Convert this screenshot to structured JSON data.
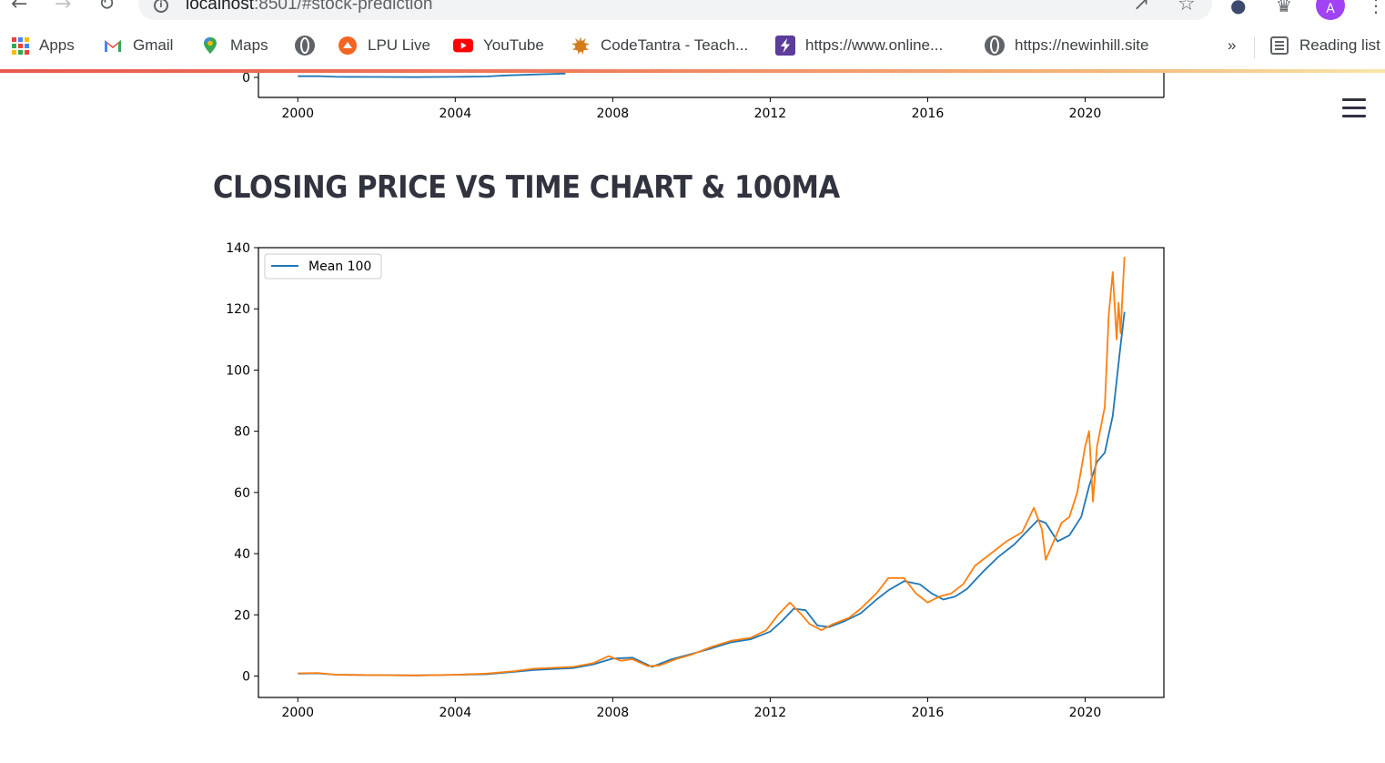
{
  "browser": {
    "url_host": "localhost",
    "url_rest": ":8501/#stock-prediction",
    "profile_initial": "A",
    "bookmarks": [
      {
        "label": "Apps",
        "icon": "apps-grid-icon"
      },
      {
        "label": "Gmail",
        "icon": "gmail-icon"
      },
      {
        "label": "Maps",
        "icon": "maps-pin-icon"
      },
      {
        "label": "",
        "icon": "globe-icon"
      },
      {
        "label": "LPU Live",
        "icon": "lpu-live-icon"
      },
      {
        "label": "YouTube",
        "icon": "youtube-icon"
      },
      {
        "label": "CodeTantra - Teach...",
        "icon": "codetantra-icon"
      },
      {
        "label": "https://www.online...",
        "icon": "bolt-icon"
      },
      {
        "label": "https://newinhill.site",
        "icon": "globe-icon"
      }
    ],
    "overflow_label": "»",
    "reading_list_label": "Reading list"
  },
  "page": {
    "title": "CLOSING PRICE VS TIME CHART & 100MA"
  },
  "chart_data": [
    {
      "type": "line",
      "partially_visible": true,
      "x_ticks": [
        "2000",
        "2004",
        "2008",
        "2012",
        "2016",
        "2020"
      ],
      "y_ticks": [
        "0"
      ],
      "xlim": [
        1999,
        2022
      ],
      "series": [
        {
          "color": "#1f77b4",
          "x": [
            2000.0,
            2000.5,
            2001.0,
            2002.0,
            2003.0,
            2004.0,
            2004.8,
            2005.3,
            2006.0,
            2006.8
          ],
          "y": [
            0.8,
            0.9,
            0.4,
            0.3,
            0.2,
            0.4,
            0.6,
            1.4,
            2.0,
            2.6
          ]
        }
      ]
    },
    {
      "type": "line",
      "xlim": [
        1999,
        2022
      ],
      "ylim": [
        -7,
        140
      ],
      "x_ticks": [
        "2000",
        "2004",
        "2008",
        "2012",
        "2016",
        "2020"
      ],
      "y_ticks": [
        "0",
        "20",
        "40",
        "60",
        "80",
        "100",
        "120",
        "140"
      ],
      "legend": {
        "placement": "upper-left",
        "entries": [
          "Mean 100"
        ]
      },
      "grid": false,
      "series": [
        {
          "name": "Mean 100",
          "color": "#1f77b4",
          "x": [
            2000.0,
            2000.5,
            2001.0,
            2002.0,
            2003.0,
            2004.0,
            2004.8,
            2005.5,
            2006.0,
            2007.0,
            2007.5,
            2008.0,
            2008.5,
            2009.0,
            2009.5,
            2010.0,
            2010.5,
            2011.0,
            2011.5,
            2012.0,
            2012.3,
            2012.6,
            2012.9,
            2013.2,
            2013.5,
            2013.9,
            2014.3,
            2014.7,
            2015.0,
            2015.4,
            2015.8,
            2016.1,
            2016.4,
            2016.7,
            2017.0,
            2017.4,
            2017.8,
            2018.2,
            2018.5,
            2018.8,
            2019.0,
            2019.3,
            2019.6,
            2019.9,
            2020.1,
            2020.3,
            2020.5,
            2020.7,
            2020.9,
            2021.0
          ],
          "y": [
            0.8,
            0.9,
            0.4,
            0.3,
            0.2,
            0.4,
            0.6,
            1.4,
            2.0,
            2.6,
            3.8,
            5.7,
            6.0,
            3.0,
            5.5,
            7.2,
            9.0,
            11.0,
            12.0,
            14.5,
            18.0,
            22.0,
            21.5,
            16.5,
            16.0,
            18.0,
            20.5,
            25.0,
            28.0,
            31.0,
            30.0,
            27.0,
            25.0,
            26.0,
            28.5,
            34.0,
            39.0,
            43.0,
            47.0,
            51.0,
            50.0,
            44.0,
            46.0,
            52.0,
            62.0,
            70.0,
            73.0,
            85.0,
            108.0,
            119.0
          ]
        },
        {
          "color": "#ff7f0e",
          "x": [
            2000.0,
            2000.5,
            2001.0,
            2002.0,
            2003.0,
            2004.0,
            2004.8,
            2005.5,
            2006.0,
            2007.0,
            2007.5,
            2007.9,
            2008.2,
            2008.5,
            2008.9,
            2009.2,
            2009.6,
            2010.0,
            2010.5,
            2011.0,
            2011.5,
            2011.9,
            2012.2,
            2012.5,
            2012.8,
            2013.0,
            2013.3,
            2013.6,
            2014.0,
            2014.3,
            2014.7,
            2015.0,
            2015.4,
            2015.7,
            2016.0,
            2016.3,
            2016.6,
            2016.9,
            2017.2,
            2017.6,
            2018.0,
            2018.4,
            2018.7,
            2018.9,
            2019.0,
            2019.2,
            2019.4,
            2019.6,
            2019.8,
            2020.0,
            2020.1,
            2020.2,
            2020.3,
            2020.5,
            2020.6,
            2020.7,
            2020.8,
            2020.85,
            2020.9,
            2020.95,
            2021.0
          ],
          "y": [
            0.9,
            1.0,
            0.4,
            0.3,
            0.2,
            0.4,
            0.8,
            1.6,
            2.4,
            3.0,
            4.2,
            6.5,
            5.0,
            5.5,
            3.2,
            3.5,
            5.5,
            7.0,
            9.5,
            11.5,
            12.5,
            15.0,
            20.0,
            24.0,
            20.0,
            17.0,
            15.0,
            17.0,
            19.0,
            22.0,
            27.0,
            32.0,
            32.0,
            27.0,
            24.0,
            26.0,
            27.0,
            30.0,
            36.0,
            40.0,
            44.0,
            47.0,
            55.0,
            48.0,
            38.0,
            44.0,
            50.0,
            52.0,
            60.0,
            75.0,
            80.0,
            57.0,
            75.0,
            88.0,
            118.0,
            132.0,
            110.0,
            122.0,
            112.0,
            125.0,
            137.0
          ]
        }
      ]
    }
  ]
}
